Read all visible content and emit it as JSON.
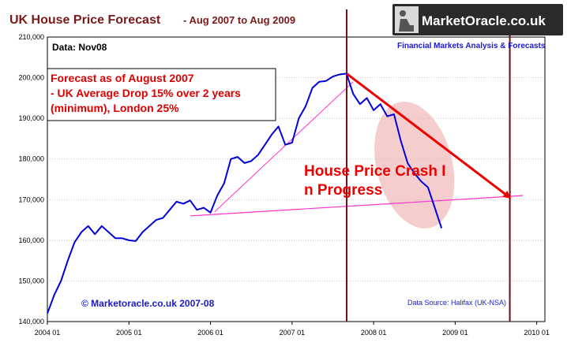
{
  "chart_data": {
    "type": "line",
    "title": "UK House Price Forecast",
    "subtitle": "- Aug 2007 to Aug 2009",
    "data_label": "Data: Nov08",
    "ylim": [
      140000,
      210000
    ],
    "xlim": [
      2004.0,
      2010.1
    ],
    "y_ticks": [
      140000,
      150000,
      160000,
      170000,
      180000,
      190000,
      200000,
      210000
    ],
    "y_tick_labels": [
      "140,000",
      "150,000",
      "160,000",
      "170,000",
      "180,000",
      "190,000",
      "200,000",
      "210,000"
    ],
    "x_ticks": [
      2004.0,
      2005.0,
      2006.0,
      2007.0,
      2008.0,
      2009.0,
      2010.0
    ],
    "x_tick_labels": [
      "2004 01",
      "2005 01",
      "2006 01",
      "2007 01",
      "2008 01",
      "2009 01",
      "2010 01"
    ],
    "grid": true,
    "series": [
      {
        "color": "#0000dd",
        "x": [
          2004.0,
          2004.083,
          2004.167,
          2004.25,
          2004.333,
          2004.417,
          2004.5,
          2004.583,
          2004.667,
          2004.75,
          2004.833,
          2004.917,
          2005.0,
          2005.083,
          2005.167,
          2005.25,
          2005.333,
          2005.417,
          2005.5,
          2005.583,
          2005.667,
          2005.75,
          2005.833,
          2005.917,
          2006.0,
          2006.083,
          2006.167,
          2006.25,
          2006.333,
          2006.417,
          2006.5,
          2006.583,
          2006.667,
          2006.75,
          2006.833,
          2006.917,
          2007.0,
          2007.083,
          2007.167,
          2007.25,
          2007.333,
          2007.417,
          2007.5,
          2007.583,
          2007.667,
          2007.75,
          2007.833,
          2007.917,
          2008.0,
          2008.083,
          2008.167,
          2008.25,
          2008.333,
          2008.417,
          2008.5,
          2008.583,
          2008.667,
          2008.75,
          2008.833
        ],
        "y": [
          142000,
          146500,
          150000,
          155000,
          159500,
          162000,
          163500,
          161500,
          163500,
          162000,
          160500,
          160500,
          160000,
          159800,
          162000,
          163500,
          165000,
          165500,
          167500,
          169500,
          169000,
          169800,
          167500,
          168000,
          166800,
          171000,
          174000,
          180000,
          180500,
          179000,
          179500,
          181000,
          183500,
          186000,
          188000,
          183500,
          184000,
          190000,
          193000,
          197500,
          199000,
          199200,
          200300,
          200800,
          201000,
          196000,
          193500,
          195000,
          192000,
          193500,
          190500,
          191000,
          184500,
          179000,
          176500,
          174500,
          173000,
          168000,
          163000
        ]
      }
    ],
    "annotations": {
      "forecast_box": [
        "Forecast as of August 2007",
        "- UK Average Drop 15% over 2 years",
        "(minimum), London 25%"
      ],
      "crash_label": [
        "House Price Crash I",
        "n Progress"
      ],
      "copyright": "© Marketoracle.co.uk 2007-08",
      "source": "Data Source: Halifax (UK-NSA)",
      "forecast_arrow": {
        "from": [
          2007.67,
          201000
        ],
        "to": [
          2009.67,
          170500
        ]
      },
      "vertical_markers": [
        2007.67,
        2009.67
      ],
      "support_line": {
        "from": [
          2005.75,
          166000
        ],
        "to": [
          2009.83,
          171000
        ]
      },
      "trend_line": {
        "from": [
          2006.05,
          167000
        ],
        "to": [
          2007.75,
          199000
        ]
      }
    },
    "colors": {
      "marker": "#6b0f1a",
      "arrow": "#ee0000",
      "support": "#ff33cc",
      "ellipse": "#f2b8b8"
    }
  },
  "logo": {
    "name": "MarketOracle.co.uk",
    "tagline": "Financial Markets Analysis & Forecasts"
  }
}
